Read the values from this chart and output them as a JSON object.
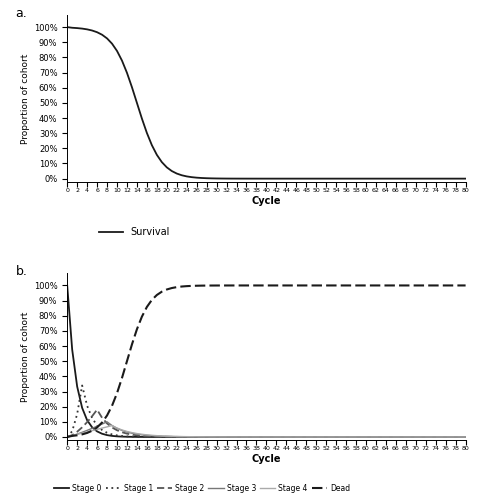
{
  "cycles": 81,
  "xlabel": "Cycle",
  "ylabel": "Proportion of cohort",
  "panel_a_label": "a.",
  "panel_b_label": "b.",
  "legend_a": [
    {
      "label": "Survival",
      "color": "#1a1a1a",
      "linestyle": "solid",
      "linewidth": 1.3
    }
  ],
  "legend_b": [
    {
      "label": "Stage 0",
      "color": "#1a1a1a",
      "linestyle": "solid",
      "linewidth": 1.3
    },
    {
      "label": "Stage 1",
      "color": "#333333",
      "linestyle": "dotted",
      "linewidth": 1.3
    },
    {
      "label": "Stage 2",
      "color": "#555555",
      "linestyle": "dashed",
      "linewidth": 1.3
    },
    {
      "label": "Stage 3",
      "color": "#777777",
      "linestyle": "solid",
      "linewidth": 1.0
    },
    {
      "label": "Stage 4",
      "color": "#aaaaaa",
      "linestyle": "solid",
      "linewidth": 1.0
    },
    {
      "label": "Dead",
      "color": "#1a1a1a",
      "linestyle": "dashed",
      "linewidth": 1.5
    }
  ],
  "survival_k": 0.12,
  "survival_inflect": 8.0,
  "stage0_k": 0.55,
  "stage1_peak": 0.34,
  "stage1_peak_t": 3,
  "stage1_rise": 2.0,
  "stage1_decay": 0.5,
  "stage2_peak": 0.18,
  "stage2_peak_t": 6,
  "stage2_rise": 1.5,
  "stage2_decay": 0.35,
  "stage3_peak": 0.1,
  "stage3_peak_t": 8,
  "stage3_rise": 1.2,
  "stage3_decay": 0.28,
  "stage4_peak": 0.075,
  "stage4_peak_t": 9,
  "stage4_rise": 1.0,
  "stage4_decay": 0.24,
  "dead_steepness": 0.45,
  "dead_midpoint": 12.0
}
